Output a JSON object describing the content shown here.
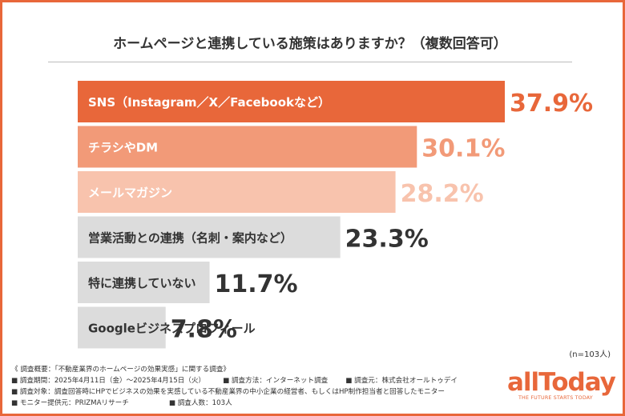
{
  "title": "ホームページと連携している施策はありますか？（複数回答可）",
  "chart_data": {
    "type": "bar",
    "orientation": "horizontal",
    "categories": [
      "SNS（Instagram／X／Facebookなど）",
      "チラシやDM",
      "メールマガジン",
      "営業活動との連携（名刺・案内など）",
      "特に連携していない",
      "Googleビジネスプロフィール"
    ],
    "values": [
      37.9,
      30.1,
      28.2,
      23.3,
      11.7,
      7.8
    ],
    "value_labels": [
      "37.9%",
      "30.1%",
      "28.2%",
      "23.3%",
      "11.7%",
      "7.8%"
    ],
    "bar_colors": [
      "#e8673a",
      "#f29a78",
      "#f8c3ad",
      "#dcdcdc",
      "#dcdcdc",
      "#dcdcdc"
    ],
    "label_colors": [
      "#ffffff",
      "#ffffff",
      "#ffffff",
      "#333333",
      "#333333",
      "#333333"
    ],
    "value_colors": [
      "#e8673a",
      "#f29a78",
      "#f8c3ad",
      "#333333",
      "#333333",
      "#333333"
    ],
    "xlim": [
      0,
      40
    ],
    "grid": false,
    "legend": "none"
  },
  "sample_note": "(n=103人)",
  "footer": {
    "overview": "《 調査概要：「不動産業界のホームページの効果実感」に関する調査》",
    "period": "■ 調査期間：2025年4月11日（金）～2025年4月15日（火）",
    "method": "■ 調査方法：インターネット調査",
    "organizer": "■ 調査元：株式会社オールトゥデイ",
    "target": "■ 調査対象：調査回答時にHPでビジネスの効果を実感している不動産業界の中小企業の経営者、もしくはHP制作担当者と回答したモニター",
    "provider": "■ モニター提供元：PRIZMAリサーチ",
    "respondents": "■ 調査人数：103人"
  },
  "logo": {
    "name": "allToday",
    "tagline": "THE FUTURE STARTS TODAY"
  },
  "colors": {
    "accent": "#e8673a"
  }
}
